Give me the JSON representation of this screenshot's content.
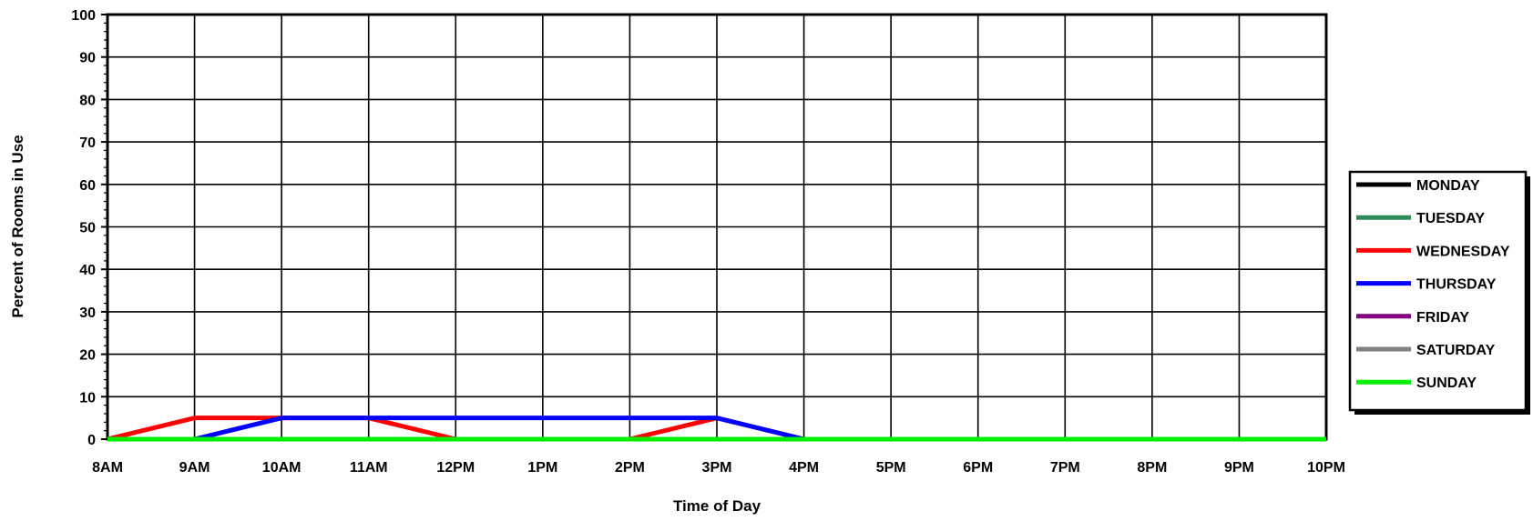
{
  "chart_data": {
    "type": "line",
    "xlabel": "Time of Day",
    "ylabel": "Percent of Rooms in Use",
    "ylim": [
      0,
      100
    ],
    "yticks": [
      0,
      10,
      20,
      30,
      40,
      50,
      60,
      70,
      80,
      90,
      100
    ],
    "categories": [
      "8AM",
      "9AM",
      "10AM",
      "11AM",
      "12PM",
      "1PM",
      "2PM",
      "3PM",
      "4PM",
      "5PM",
      "6PM",
      "7PM",
      "8PM",
      "9PM",
      "10PM"
    ],
    "grid": true,
    "legend_position": "right",
    "series": [
      {
        "name": "MONDAY",
        "color": "#000000",
        "values": [
          0,
          0,
          0,
          0,
          0,
          0,
          0,
          0,
          0,
          0,
          0,
          0,
          0,
          0,
          0
        ]
      },
      {
        "name": "TUESDAY",
        "color": "#2e8b57",
        "values": [
          0,
          0,
          0,
          0,
          0,
          0,
          0,
          0,
          0,
          0,
          0,
          0,
          0,
          0,
          0
        ]
      },
      {
        "name": "WEDNESDAY",
        "color": "#ff0000",
        "values": [
          0,
          5,
          5,
          5,
          0,
          0,
          0,
          5,
          0,
          0,
          0,
          0,
          0,
          0,
          0
        ]
      },
      {
        "name": "THURSDAY",
        "color": "#0000ff",
        "values": [
          0,
          0,
          5,
          5,
          5,
          5,
          5,
          5,
          0,
          0,
          0,
          0,
          0,
          0,
          0
        ]
      },
      {
        "name": "FRIDAY",
        "color": "#800080",
        "values": [
          0,
          0,
          0,
          0,
          0,
          0,
          0,
          0,
          0,
          0,
          0,
          0,
          0,
          0,
          0
        ]
      },
      {
        "name": "SATURDAY",
        "color": "#808080",
        "values": [
          0,
          0,
          0,
          0,
          0,
          0,
          0,
          0,
          0,
          0,
          0,
          0,
          0,
          0,
          0
        ]
      },
      {
        "name": "SUNDAY",
        "color": "#00ee00",
        "values": [
          0,
          0,
          0,
          0,
          0,
          0,
          0,
          0,
          0,
          0,
          0,
          0,
          0,
          0,
          0
        ]
      }
    ]
  }
}
